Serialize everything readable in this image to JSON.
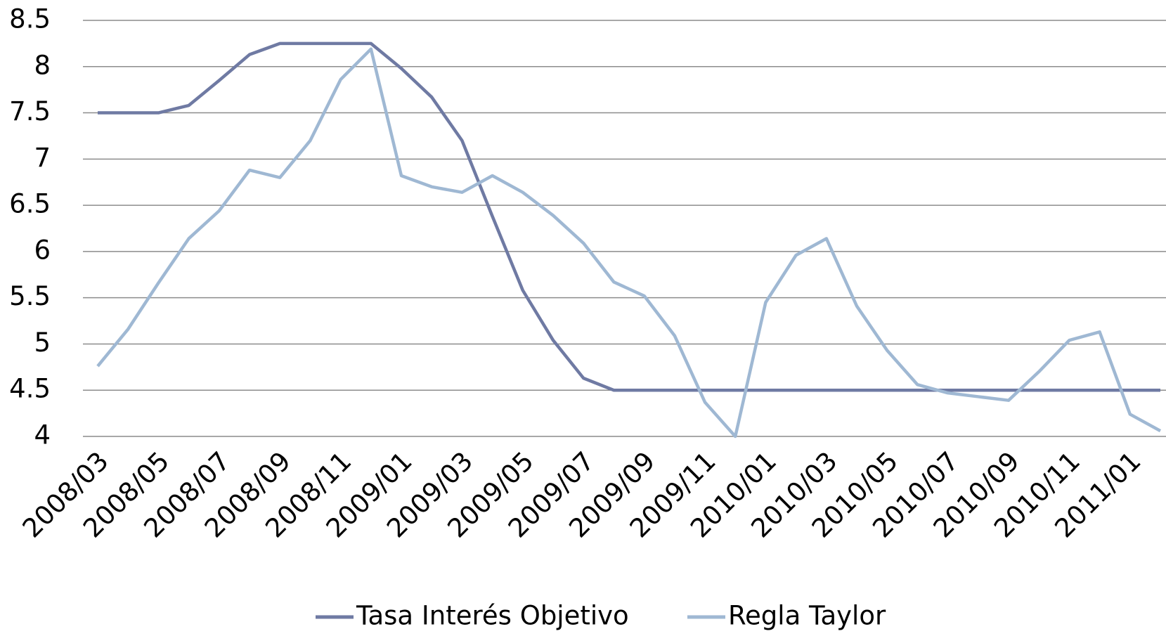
{
  "chart_data": {
    "type": "line",
    "categories": [
      "2008/03",
      null,
      "2008/05",
      null,
      "2008/07",
      null,
      "2008/09",
      null,
      "2008/11",
      null,
      "2009/01",
      null,
      "2009/03",
      null,
      "2009/05",
      null,
      "2009/07",
      null,
      "2009/09",
      null,
      "2009/11",
      null,
      "2010/01",
      null,
      "2010/03",
      null,
      "2010/05",
      null,
      "2010/07",
      null,
      "2010/09",
      null,
      "2010/11",
      null,
      "2011/01",
      null
    ],
    "series": [
      {
        "name": "Tasa Interés Objetivo",
        "color": "#6f7aa3",
        "values": [
          7.5,
          7.5,
          7.5,
          7.58,
          7.85,
          8.13,
          8.25,
          8.25,
          8.25,
          8.25,
          7.98,
          7.67,
          7.2,
          6.38,
          5.58,
          5.04,
          4.63,
          4.5,
          4.5,
          4.5,
          4.5,
          4.5,
          4.5,
          4.5,
          4.5,
          4.5,
          4.5,
          4.5,
          4.5,
          4.5,
          4.5,
          4.5,
          4.5,
          4.5,
          4.5,
          4.5
        ]
      },
      {
        "name": "Regla Taylor",
        "color": "#9fb8d3",
        "values": [
          4.76,
          5.16,
          5.66,
          6.14,
          6.44,
          6.88,
          6.8,
          7.2,
          7.86,
          8.19,
          6.82,
          6.7,
          6.64,
          6.82,
          6.64,
          6.39,
          6.09,
          5.67,
          5.52,
          5.09,
          4.37,
          4.0,
          5.45,
          5.96,
          6.14,
          5.41,
          4.93,
          4.56,
          4.47,
          4.43,
          4.39,
          4.7,
          5.04,
          5.13,
          4.24,
          4.06
        ]
      }
    ],
    "ylim": [
      4,
      8.5
    ],
    "yticks": [
      4,
      4.5,
      5,
      5.5,
      6,
      6.5,
      7,
      7.5,
      8,
      8.5
    ],
    "grid": true,
    "legend": "bottom"
  }
}
